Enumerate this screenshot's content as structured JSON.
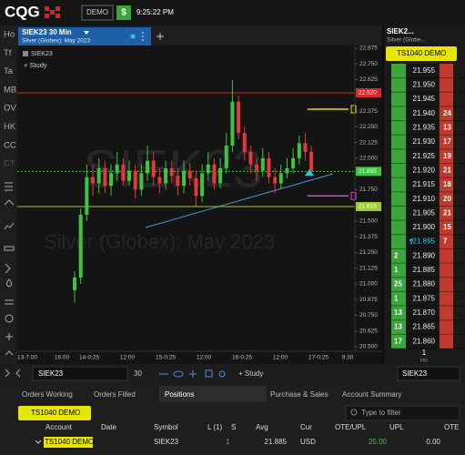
{
  "header": {
    "logo": "CQG",
    "mode": "DEMO",
    "currency": "$",
    "time": "9:25:22 PM"
  },
  "sidebar": [
    "Ho",
    "Tf",
    "Ta",
    "MB",
    "OV",
    "HK",
    "CC",
    "CT"
  ],
  "chart_window": {
    "symbol_label": "SIEK23",
    "study": "+ Study",
    "watermark": "SIEK23"
  },
  "chart_data": {
    "type": "candlestick",
    "title": "SIEK23 30 Min",
    "subtitle": "Silver (Globex): May 2023",
    "x_labels": [
      "13-7:00",
      "16:00",
      "14-0:25",
      "12:00",
      "15-0:25",
      "12:00",
      "16-0:25",
      "12:00",
      "17-0:25",
      "9:30"
    ],
    "open": [
      20.95,
      21.05,
      21.55,
      21.85,
      21.8,
      21.92,
      21.78,
      21.88,
      21.95,
      21.82,
      21.9,
      21.75,
      21.88,
      21.98,
      21.85,
      21.8,
      21.92,
      21.86,
      21.78,
      21.9,
      21.84,
      21.7,
      21.88,
      21.95,
      21.8,
      21.92,
      22.1,
      22.45,
      22.2,
      22.05,
      21.95,
      21.9,
      22.0,
      21.85,
      21.8,
      21.88,
      21.92,
      22.0,
      22.12,
      22.05
    ],
    "high": [
      21.1,
      21.6,
      21.95,
      21.95,
      22.0,
      21.98,
      21.95,
      22.05,
      22.0,
      21.98,
      21.95,
      21.95,
      22.1,
      22.05,
      21.92,
      21.98,
      21.98,
      21.92,
      21.98,
      21.96,
      21.9,
      21.95,
      22.05,
      22.0,
      22.0,
      22.2,
      22.62,
      22.5,
      22.25,
      22.1,
      22.0,
      22.08,
      22.05,
      21.92,
      21.95,
      22.0,
      22.08,
      22.18,
      22.2,
      22.1
    ],
    "low": [
      20.85,
      21.0,
      21.5,
      21.7,
      21.72,
      21.72,
      21.7,
      21.82,
      21.78,
      21.78,
      21.68,
      21.7,
      21.82,
      21.78,
      21.72,
      21.75,
      21.8,
      21.7,
      21.72,
      21.78,
      21.62,
      21.65,
      21.82,
      21.75,
      21.76,
      21.88,
      22.05,
      22.15,
      21.98,
      21.88,
      21.82,
      21.85,
      21.8,
      21.72,
      21.76,
      21.84,
      21.88,
      21.95,
      21.98,
      21.85
    ],
    "close": [
      21.05,
      21.55,
      21.85,
      21.8,
      21.92,
      21.78,
      21.88,
      21.95,
      21.82,
      21.9,
      21.75,
      21.88,
      21.98,
      21.85,
      21.8,
      21.92,
      21.86,
      21.78,
      21.9,
      21.84,
      21.7,
      21.88,
      21.95,
      21.8,
      21.92,
      22.1,
      22.45,
      22.2,
      22.05,
      21.95,
      21.9,
      22.0,
      21.85,
      21.8,
      21.88,
      21.92,
      22.0,
      22.12,
      22.05,
      21.9
    ],
    "up_color": "#3ec43e",
    "down_color": "#e03a3a",
    "ylim": [
      20.5,
      22.875
    ],
    "yticks": [
      22.875,
      {
        "value": 22.75,
        "label": "22.750"
      },
      22.625,
      22.375,
      {
        "value": 22.25,
        "label": "22.250"
      },
      22.125,
      {
        "value": 22.0,
        "label": "22.000"
      },
      {
        "value": 21.75,
        "label": "21.750"
      },
      {
        "value": 21.5,
        "label": "21.500"
      },
      21.375,
      {
        "value": 21.25,
        "label": "21.250"
      },
      21.125,
      {
        "value": 21.0,
        "label": "21.000"
      },
      20.875,
      {
        "value": 20.75,
        "label": "20.750"
      },
      20.625,
      {
        "value": 20.5,
        "label": "20.500"
      }
    ],
    "levels": [
      {
        "value": 22.52,
        "label": "22.520",
        "color": "#d42a2a",
        "style": "solid"
      },
      {
        "value": 21.895,
        "label": "21.895",
        "color": "#3ec43e",
        "style": "dotted"
      },
      {
        "value": 21.615,
        "label": "21.615",
        "color": "#9acd32",
        "style": "solid"
      }
    ],
    "order_lines": [
      {
        "value": 22.39,
        "color": "#e8e000"
      },
      {
        "value": 21.7,
        "color": "#e040e0"
      }
    ],
    "grid": false
  },
  "dom": {
    "tab": "SIEK2...",
    "subtitle": "Silver (Globe...",
    "account": "TS1040 DEMO",
    "last": "21.895",
    "rows": [
      {
        "price": "21.955"
      },
      {
        "price": "21.950"
      },
      {
        "price": "21.945"
      },
      {
        "price": "21.940",
        "ask": 24
      },
      {
        "price": "21.935",
        "ask": 13
      },
      {
        "price": "21.930",
        "ask": 17
      },
      {
        "price": "21.925",
        "ask": 19
      },
      {
        "price": "21.920",
        "ask": 21
      },
      {
        "price": "21.915",
        "ask": 18
      },
      {
        "price": "21.910",
        "ask": 20
      },
      {
        "price": "21.905",
        "ask": 21
      },
      {
        "price": "21.900",
        "ask": 15
      },
      {
        "price": "21.895",
        "ask": 7
      },
      {
        "price": "21.890",
        "bid": 2
      },
      {
        "price": "21.885",
        "bid": 1
      },
      {
        "price": "21.880",
        "bid": 25
      },
      {
        "price": "21.875",
        "bid": 1
      },
      {
        "price": "21.870",
        "bid": 13
      },
      {
        "price": "21.865",
        "bid": 13
      },
      {
        "price": "21.860",
        "bid": 17
      }
    ],
    "qty": 1,
    "qty_unit": "lots"
  },
  "toolbar": {
    "symbol": "SIEK23",
    "interval": "30",
    "study": "+ Study",
    "dom_symbol": "SIEK23"
  },
  "tabs": [
    "Orders Working",
    "Orders Filled",
    "Positions",
    "Purchase & Sales",
    "Account Summary"
  ],
  "positions": {
    "account_button": "TS1040 DEMO",
    "filter": "Type to filter",
    "columns": [
      "Account",
      "Date",
      "Symbol",
      "L (1)",
      "S",
      "Avg",
      "Cur",
      "OTE/UPL",
      "UPL",
      "OTE"
    ],
    "row": {
      "account": "TS1040 DEMO",
      "symbol": "SIEK23",
      "long": 1,
      "avg": "21.885",
      "cur": "USD",
      "upl": "25.00",
      "ote": "0.00"
    }
  }
}
